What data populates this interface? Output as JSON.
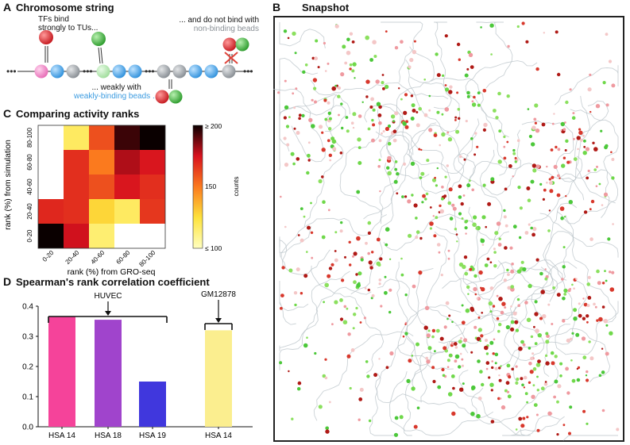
{
  "panelA": {
    "letter": "A",
    "title": "Chromosome string",
    "note_tu_line1": "TFs bind",
    "note_tu_line2": "strongly to TUs...",
    "note_weak_line1": "... weakly with",
    "note_weak_line2": "weakly-binding beads ...",
    "note_non_line1": "... and do not bind with",
    "note_non_line2": "non-binding beads",
    "colors": {
      "tu": "#f28ac9",
      "weak": "#4da6e8",
      "non": "#9fa4a8",
      "tf_red": "#d8262c",
      "tf_green": "#3aa83a",
      "cross": "#e0443a"
    }
  },
  "panelB": {
    "letter": "B",
    "title": "Snapshot"
  },
  "panelC": {
    "letter": "C",
    "title": "Comparing activity ranks",
    "colorbar_label": "counts",
    "colorbar_ticks": [
      "≥ 200",
      "150",
      "≤ 100"
    ]
  },
  "panelD": {
    "letter": "D",
    "title": "Spearman's rank correlation coefficient",
    "group_huvec": "HUVEC",
    "group_gm": "GM12878"
  },
  "chart_data": [
    {
      "type": "heatmap",
      "title": "Comparing activity ranks",
      "xlabel": "rank (%) from GRO-seq",
      "ylabel": "rank (%) from simulation",
      "x": [
        "0-20",
        "20-40",
        "40-60",
        "60-80",
        "80-100"
      ],
      "y": [
        "0-20",
        "20-40",
        "40-60",
        "60-80",
        "80-100"
      ],
      "values": [
        [
          200,
          176,
          115,
          100,
          100
        ],
        [
          170,
          168,
          128,
          118,
          166
        ],
        [
          100,
          168,
          160,
          174,
          168
        ],
        [
          100,
          168,
          150,
          180,
          174
        ],
        [
          100,
          118,
          160,
          194,
          205
        ]
      ],
      "zlim": [
        100,
        200
      ]
    },
    {
      "type": "bar",
      "title": "Spearman's rank correlation coefficient",
      "categories": [
        "HSA 14",
        "HSA 18",
        "HSA 19",
        "HSA 14"
      ],
      "values": [
        0.365,
        0.355,
        0.15,
        0.32
      ],
      "colors": [
        "#f5439a",
        "#a044cc",
        "#4037dd",
        "#fbee8f"
      ],
      "ylim": [
        0,
        0.4
      ],
      "yticks": [
        "0.0",
        "0.1",
        "0.2",
        "0.3",
        "0.4"
      ],
      "groups": [
        {
          "name": "HUVEC",
          "members": [
            0,
            1,
            2
          ]
        },
        {
          "name": "GM12878",
          "members": [
            3
          ]
        }
      ]
    }
  ]
}
